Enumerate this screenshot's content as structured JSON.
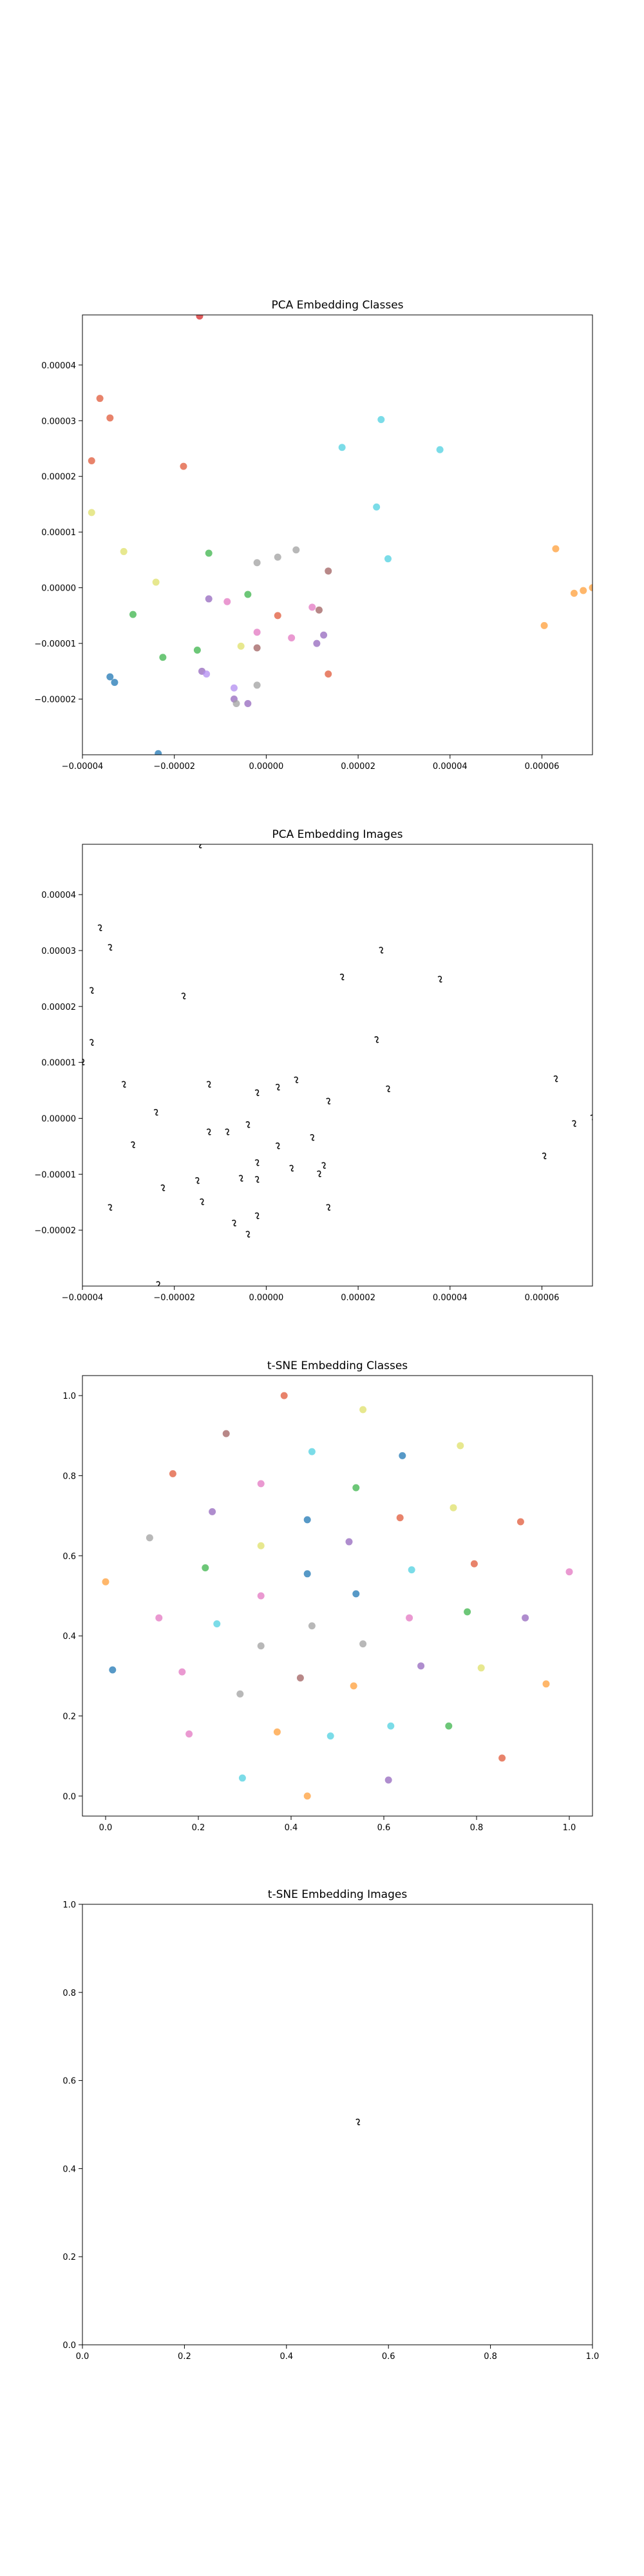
{
  "figure": {
    "panel_titles": [
      "PCA Embedding Classes",
      "PCA Embedding Images",
      "t-SNE Embedding Classes",
      "t-SNE Embedding Images"
    ]
  },
  "chart_data": [
    {
      "type": "scatter",
      "title": "PCA Embedding Classes",
      "xlim": [
        -4e-05,
        7.1e-05
      ],
      "ylim": [
        -3e-05,
        4.9e-05
      ],
      "x_ticks": [
        -4e-05,
        -2e-05,
        0.0,
        2e-05,
        4e-05,
        6e-05
      ],
      "x_tick_labels": [
        "−0.00004",
        "−0.00002",
        "0.00000",
        "0.00002",
        "0.00004",
        "0.00006"
      ],
      "y_ticks": [
        -2e-05,
        -1e-05,
        0.0,
        1e-05,
        2e-05,
        3e-05,
        4e-05
      ],
      "y_tick_labels": [
        "−0.00002",
        "−0.00001",
        "0.00000",
        "0.00001",
        "0.00002",
        "0.00003",
        "0.00004"
      ],
      "marker": "point",
      "points": [
        {
          "x": -1.45e-05,
          "y": 4.88e-05,
          "color": "#d62728"
        },
        {
          "x": -3.62e-05,
          "y": 3.4e-05,
          "color": "#e05a3a"
        },
        {
          "x": -3.4e-05,
          "y": 3.05e-05,
          "color": "#e05a3a"
        },
        {
          "x": -3.8e-05,
          "y": 2.28e-05,
          "color": "#e05a3a"
        },
        {
          "x": -1.8e-05,
          "y": 2.18e-05,
          "color": "#e05a3a"
        },
        {
          "x": -3.8e-05,
          "y": 1.35e-05,
          "color": "#dfe06a"
        },
        {
          "x": -3.1e-05,
          "y": 6.5e-06,
          "color": "#dfe06a"
        },
        {
          "x": -2.4e-05,
          "y": 1e-06,
          "color": "#dfe06a"
        },
        {
          "x": -2.9e-05,
          "y": -4.8e-06,
          "color": "#3cb44b"
        },
        {
          "x": -1.25e-05,
          "y": 6.2e-06,
          "color": "#3cb44b"
        },
        {
          "x": -2.25e-05,
          "y": -1.25e-05,
          "color": "#3cb44b"
        },
        {
          "x": -1.5e-05,
          "y": -1.12e-05,
          "color": "#3cb44b"
        },
        {
          "x": -4e-06,
          "y": -1.2e-06,
          "color": "#3cb44b"
        },
        {
          "x": -3.4e-05,
          "y": -1.6e-05,
          "color": "#1f77b4"
        },
        {
          "x": -3.3e-05,
          "y": -1.7e-05,
          "color": "#1f77b4"
        },
        {
          "x": -2.35e-05,
          "y": -2.98e-05,
          "color": "#1f77b4"
        },
        {
          "x": -1.25e-05,
          "y": -2e-06,
          "color": "#9467bd"
        },
        {
          "x": -8.5e-06,
          "y": -2.5e-06,
          "color": "#e377c2"
        },
        {
          "x": -1.4e-05,
          "y": -1.5e-05,
          "color": "#9467bd"
        },
        {
          "x": -1.3e-05,
          "y": -1.55e-05,
          "color": "#b28cf0"
        },
        {
          "x": -7e-06,
          "y": -1.8e-05,
          "color": "#b28cf0"
        },
        {
          "x": -7e-06,
          "y": -2e-05,
          "color": "#9467bd"
        },
        {
          "x": -6.5e-06,
          "y": -2.08e-05,
          "color": "#a0a0a0"
        },
        {
          "x": -4e-06,
          "y": -2.08e-05,
          "color": "#9467bd"
        },
        {
          "x": -2e-06,
          "y": -1.75e-05,
          "color": "#a0a0a0"
        },
        {
          "x": -5.5e-06,
          "y": -1.05e-05,
          "color": "#dfe06a"
        },
        {
          "x": -2e-06,
          "y": -8e-06,
          "color": "#e377c2"
        },
        {
          "x": -2e-06,
          "y": -1.08e-05,
          "color": "#a06060"
        },
        {
          "x": -2e-06,
          "y": 4.5e-06,
          "color": "#a0a0a0"
        },
        {
          "x": 2.5e-06,
          "y": 5.5e-06,
          "color": "#a0a0a0"
        },
        {
          "x": 2.5e-06,
          "y": -5e-06,
          "color": "#e05a3a"
        },
        {
          "x": 6.5e-06,
          "y": 6.8e-06,
          "color": "#a0a0a0"
        },
        {
          "x": 5.5e-06,
          "y": -9e-06,
          "color": "#e377c2"
        },
        {
          "x": 1e-05,
          "y": -3.5e-06,
          "color": "#e377c2"
        },
        {
          "x": 1.15e-05,
          "y": -4e-06,
          "color": "#a06060"
        },
        {
          "x": 1.1e-05,
          "y": -1e-05,
          "color": "#9467bd"
        },
        {
          "x": 1.25e-05,
          "y": -8.5e-06,
          "color": "#9467bd"
        },
        {
          "x": 1.35e-05,
          "y": 3e-06,
          "color": "#a06060"
        },
        {
          "x": 1.35e-05,
          "y": -1.55e-05,
          "color": "#e05a3a"
        },
        {
          "x": 1.65e-05,
          "y": 2.52e-05,
          "color": "#4fd0e0"
        },
        {
          "x": 2.4e-05,
          "y": 1.45e-05,
          "color": "#4fd0e0"
        },
        {
          "x": 2.5e-05,
          "y": 3.02e-05,
          "color": "#4fd0e0"
        },
        {
          "x": 2.65e-05,
          "y": 5.2e-06,
          "color": "#4fd0e0"
        },
        {
          "x": 3.78e-05,
          "y": 2.48e-05,
          "color": "#4fd0e0"
        },
        {
          "x": 6.05e-05,
          "y": -6.8e-06,
          "color": "#ff9f3a"
        },
        {
          "x": 6.3e-05,
          "y": 7e-06,
          "color": "#ff9f3a"
        },
        {
          "x": 6.7e-05,
          "y": -1e-06,
          "color": "#ff9f3a"
        },
        {
          "x": 6.9e-05,
          "y": -5e-07,
          "color": "#ff9f3a"
        },
        {
          "x": 7.1e-05,
          "y": 0.0,
          "color": "#ff9f3a"
        }
      ]
    },
    {
      "type": "scatter",
      "title": "PCA Embedding Images",
      "xlim": [
        -4e-05,
        7.1e-05
      ],
      "ylim": [
        -3e-05,
        4.9e-05
      ],
      "x_ticks": [
        -4e-05,
        -2e-05,
        0.0,
        2e-05,
        4e-05,
        6e-05
      ],
      "x_tick_labels": [
        "−0.00004",
        "−0.00002",
        "0.00000",
        "0.00002",
        "0.00004",
        "0.00006"
      ],
      "y_ticks": [
        -2e-05,
        -1e-05,
        0.0,
        1e-05,
        2e-05,
        3e-05,
        4e-05
      ],
      "y_tick_labels": [
        "−0.00002",
        "−0.00001",
        "0.00000",
        "0.00001",
        "0.00002",
        "0.00003",
        "0.00004"
      ],
      "marker": "thumbnail",
      "points": [
        {
          "x": -1.45e-05,
          "y": 4.88e-05
        },
        {
          "x": -3.62e-05,
          "y": 3.4e-05
        },
        {
          "x": -3.4e-05,
          "y": 3.05e-05
        },
        {
          "x": -3.8e-05,
          "y": 2.28e-05
        },
        {
          "x": -1.8e-05,
          "y": 2.18e-05
        },
        {
          "x": -3.8e-05,
          "y": 1.35e-05
        },
        {
          "x": -4e-05,
          "y": 1e-05
        },
        {
          "x": -3.1e-05,
          "y": 6e-06
        },
        {
          "x": -2.4e-05,
          "y": 1e-06
        },
        {
          "x": -2.9e-05,
          "y": -4.8e-06
        },
        {
          "x": -1.25e-05,
          "y": 6e-06
        },
        {
          "x": -2.25e-05,
          "y": -1.25e-05
        },
        {
          "x": -1.5e-05,
          "y": -1.12e-05
        },
        {
          "x": -4e-06,
          "y": -1.2e-06
        },
        {
          "x": -3.4e-05,
          "y": -1.6e-05
        },
        {
          "x": -2.35e-05,
          "y": -2.98e-05
        },
        {
          "x": -1.25e-05,
          "y": -2.5e-06
        },
        {
          "x": -8.5e-06,
          "y": -2.5e-06
        },
        {
          "x": -1.4e-05,
          "y": -1.5e-05
        },
        {
          "x": -7e-06,
          "y": -1.88e-05
        },
        {
          "x": -4e-06,
          "y": -2.08e-05
        },
        {
          "x": -2e-06,
          "y": -1.75e-05
        },
        {
          "x": -5.5e-06,
          "y": -1.08e-05
        },
        {
          "x": -2e-06,
          "y": -8e-06
        },
        {
          "x": -2e-06,
          "y": -1.1e-05
        },
        {
          "x": -2e-06,
          "y": 4.5e-06
        },
        {
          "x": 2.5e-06,
          "y": 5.5e-06
        },
        {
          "x": 2.5e-06,
          "y": -5e-06
        },
        {
          "x": 6.5e-06,
          "y": 6.8e-06
        },
        {
          "x": 5.5e-06,
          "y": -9e-06
        },
        {
          "x": 1e-05,
          "y": -3.5e-06
        },
        {
          "x": 1.15e-05,
          "y": -1e-05
        },
        {
          "x": 1.25e-05,
          "y": -8.5e-06
        },
        {
          "x": 1.35e-05,
          "y": 3e-06
        },
        {
          "x": 1.35e-05,
          "y": -1.6e-05
        },
        {
          "x": 1.65e-05,
          "y": 2.52e-05
        },
        {
          "x": 2.4e-05,
          "y": 1.4e-05
        },
        {
          "x": 2.5e-05,
          "y": 3e-05
        },
        {
          "x": 2.65e-05,
          "y": 5.2e-06
        },
        {
          "x": 3.78e-05,
          "y": 2.48e-05
        },
        {
          "x": 6.05e-05,
          "y": -6.8e-06
        },
        {
          "x": 6.3e-05,
          "y": 7e-06
        },
        {
          "x": 6.7e-05,
          "y": -1e-06
        },
        {
          "x": 7.1e-05,
          "y": 0.0
        }
      ]
    },
    {
      "type": "scatter",
      "title": "t-SNE Embedding Classes",
      "xlim": [
        -0.05,
        1.05
      ],
      "ylim": [
        -0.05,
        1.05
      ],
      "x_ticks": [
        0.0,
        0.2,
        0.4,
        0.6,
        0.8,
        1.0
      ],
      "x_tick_labels": [
        "0.0",
        "0.2",
        "0.4",
        "0.6",
        "0.8",
        "1.0"
      ],
      "y_ticks": [
        0.0,
        0.2,
        0.4,
        0.6,
        0.8,
        1.0
      ],
      "y_tick_labels": [
        "0.0",
        "0.2",
        "0.4",
        "0.6",
        "0.8",
        "1.0"
      ],
      "marker": "point",
      "points": [
        {
          "x": 0.385,
          "y": 1.0,
          "color": "#e05a3a"
        },
        {
          "x": 0.555,
          "y": 0.965,
          "color": "#dfe06a"
        },
        {
          "x": 0.26,
          "y": 0.905,
          "color": "#a06060"
        },
        {
          "x": 0.445,
          "y": 0.86,
          "color": "#4fd0e0"
        },
        {
          "x": 0.64,
          "y": 0.85,
          "color": "#1f77b4"
        },
        {
          "x": 0.765,
          "y": 0.875,
          "color": "#dfe06a"
        },
        {
          "x": 0.145,
          "y": 0.805,
          "color": "#e05a3a"
        },
        {
          "x": 0.335,
          "y": 0.78,
          "color": "#e377c2"
        },
        {
          "x": 0.54,
          "y": 0.77,
          "color": "#3cb44b"
        },
        {
          "x": 0.23,
          "y": 0.71,
          "color": "#9467bd"
        },
        {
          "x": 0.435,
          "y": 0.69,
          "color": "#1f77b4"
        },
        {
          "x": 0.635,
          "y": 0.695,
          "color": "#e05a3a"
        },
        {
          "x": 0.75,
          "y": 0.72,
          "color": "#dfe06a"
        },
        {
          "x": 0.895,
          "y": 0.685,
          "color": "#e05a3a"
        },
        {
          "x": 0.095,
          "y": 0.645,
          "color": "#a0a0a0"
        },
        {
          "x": 0.335,
          "y": 0.625,
          "color": "#dfe06a"
        },
        {
          "x": 0.525,
          "y": 0.635,
          "color": "#9467bd"
        },
        {
          "x": 0.0,
          "y": 0.535,
          "color": "#ff9f3a"
        },
        {
          "x": 0.215,
          "y": 0.57,
          "color": "#3cb44b"
        },
        {
          "x": 0.435,
          "y": 0.555,
          "color": "#1f77b4"
        },
        {
          "x": 0.66,
          "y": 0.565,
          "color": "#4fd0e0"
        },
        {
          "x": 0.795,
          "y": 0.58,
          "color": "#e05a3a"
        },
        {
          "x": 1.0,
          "y": 0.56,
          "color": "#e377c2"
        },
        {
          "x": 0.335,
          "y": 0.5,
          "color": "#e377c2"
        },
        {
          "x": 0.54,
          "y": 0.505,
          "color": "#1f77b4"
        },
        {
          "x": 0.115,
          "y": 0.445,
          "color": "#e377c2"
        },
        {
          "x": 0.24,
          "y": 0.43,
          "color": "#4fd0e0"
        },
        {
          "x": 0.445,
          "y": 0.425,
          "color": "#a0a0a0"
        },
        {
          "x": 0.655,
          "y": 0.445,
          "color": "#e377c2"
        },
        {
          "x": 0.78,
          "y": 0.46,
          "color": "#3cb44b"
        },
        {
          "x": 0.905,
          "y": 0.445,
          "color": "#9467bd"
        },
        {
          "x": 0.335,
          "y": 0.375,
          "color": "#a0a0a0"
        },
        {
          "x": 0.555,
          "y": 0.38,
          "color": "#a0a0a0"
        },
        {
          "x": 0.015,
          "y": 0.315,
          "color": "#1f77b4"
        },
        {
          "x": 0.165,
          "y": 0.31,
          "color": "#e377c2"
        },
        {
          "x": 0.42,
          "y": 0.295,
          "color": "#a06060"
        },
        {
          "x": 0.68,
          "y": 0.325,
          "color": "#9467bd"
        },
        {
          "x": 0.81,
          "y": 0.32,
          "color": "#dfe06a"
        },
        {
          "x": 0.29,
          "y": 0.255,
          "color": "#a0a0a0"
        },
        {
          "x": 0.535,
          "y": 0.275,
          "color": "#ff9f3a"
        },
        {
          "x": 0.95,
          "y": 0.28,
          "color": "#ff9f3a"
        },
        {
          "x": 0.18,
          "y": 0.155,
          "color": "#e377c2"
        },
        {
          "x": 0.37,
          "y": 0.16,
          "color": "#ff9f3a"
        },
        {
          "x": 0.485,
          "y": 0.15,
          "color": "#4fd0e0"
        },
        {
          "x": 0.615,
          "y": 0.175,
          "color": "#4fd0e0"
        },
        {
          "x": 0.74,
          "y": 0.175,
          "color": "#3cb44b"
        },
        {
          "x": 0.855,
          "y": 0.095,
          "color": "#e05a3a"
        },
        {
          "x": 0.295,
          "y": 0.045,
          "color": "#4fd0e0"
        },
        {
          "x": 0.61,
          "y": 0.04,
          "color": "#9467bd"
        },
        {
          "x": 0.435,
          "y": 0.0,
          "color": "#ff9f3a"
        }
      ]
    },
    {
      "type": "scatter",
      "title": "t-SNE Embedding Images",
      "xlim": [
        0.0,
        1.0
      ],
      "ylim": [
        0.0,
        1.0
      ],
      "x_ticks": [
        0.0,
        0.2,
        0.4,
        0.6,
        0.8,
        1.0
      ],
      "x_tick_labels": [
        "0.0",
        "0.2",
        "0.4",
        "0.6",
        "0.8",
        "1.0"
      ],
      "y_ticks": [
        0.0,
        0.2,
        0.4,
        0.6,
        0.8,
        1.0
      ],
      "y_tick_labels": [
        "0.0",
        "0.2",
        "0.4",
        "0.6",
        "0.8",
        "1.0"
      ],
      "marker": "thumbnail",
      "points": [
        {
          "x": 0.54,
          "y": 0.505
        }
      ]
    }
  ]
}
